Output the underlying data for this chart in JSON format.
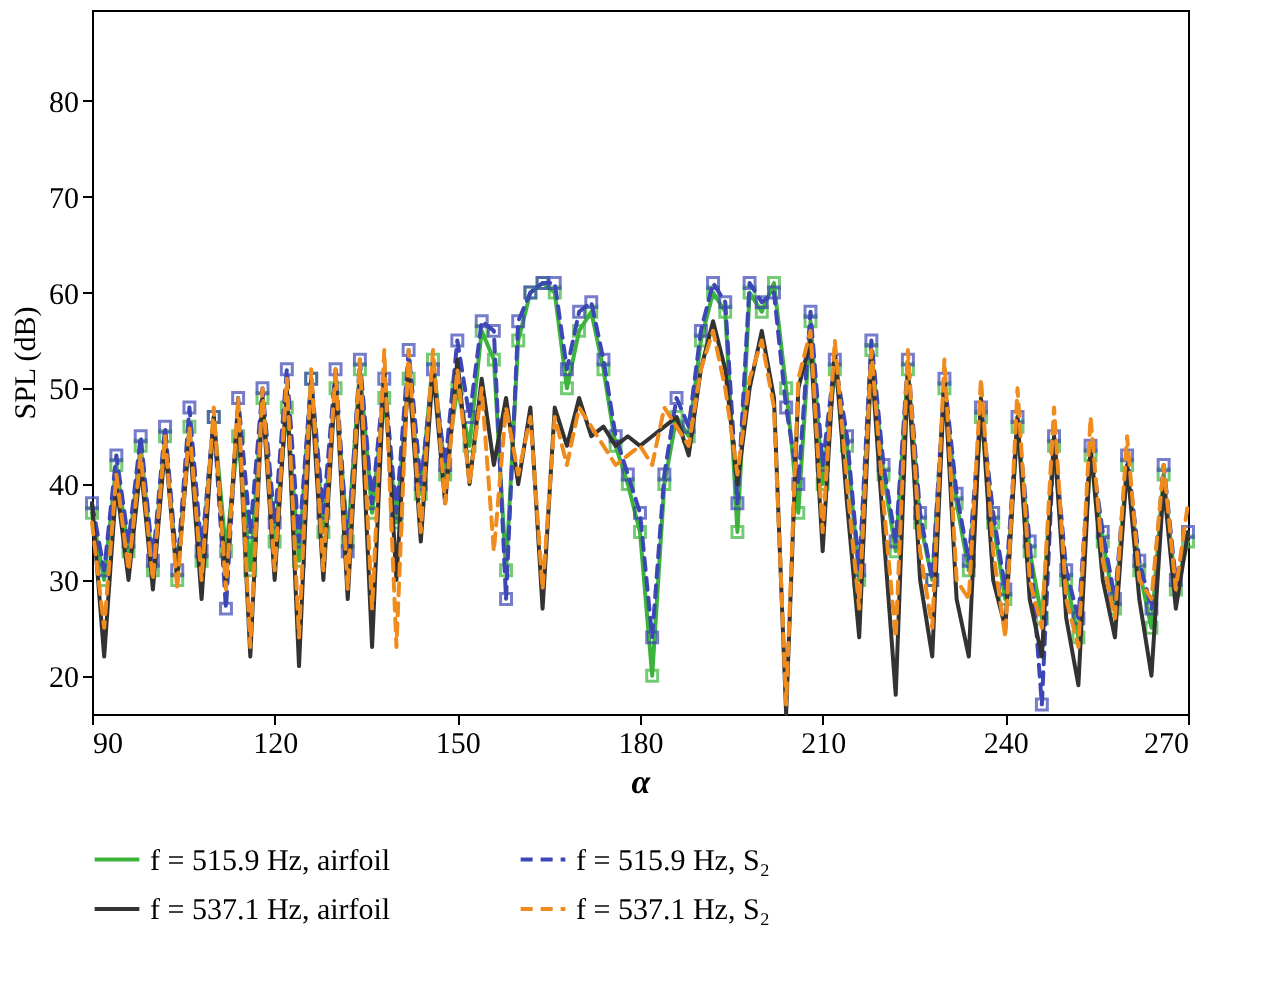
{
  "chart_data": {
    "type": "line",
    "xlabel": "α",
    "ylabel": "SPL (dB)",
    "x": [
      90,
      92,
      94,
      96,
      98,
      100,
      102,
      104,
      106,
      108,
      110,
      112,
      114,
      116,
      118,
      120,
      122,
      124,
      126,
      128,
      130,
      132,
      134,
      136,
      138,
      140,
      142,
      144,
      146,
      148,
      150,
      152,
      154,
      156,
      158,
      160,
      162,
      164,
      166,
      168,
      170,
      172,
      174,
      176,
      178,
      180,
      182,
      184,
      186,
      188,
      190,
      192,
      194,
      196,
      198,
      200,
      202,
      204,
      206,
      208,
      210,
      212,
      214,
      216,
      218,
      220,
      222,
      224,
      226,
      228,
      230,
      232,
      234,
      236,
      238,
      240,
      242,
      244,
      246,
      248,
      250,
      252,
      254,
      256,
      258,
      260,
      262,
      264,
      266,
      268,
      270
    ],
    "series": [
      {
        "name": "f = 515.9 Hz, airfoil",
        "color": "#3cb43c",
        "line_style": "solid",
        "marker": "square",
        "values": [
          37,
          30,
          42,
          33,
          44,
          31,
          45,
          30,
          46,
          32,
          47,
          33,
          45,
          31,
          49,
          34,
          48,
          32,
          51,
          35,
          50,
          34,
          52,
          37,
          49,
          36,
          51,
          39,
          53,
          41,
          50,
          44,
          56,
          53,
          31,
          55,
          60,
          61,
          60,
          50,
          56,
          58,
          52,
          44,
          40,
          35,
          20,
          40,
          47,
          45,
          55,
          60,
          58,
          35,
          60,
          58,
          61,
          50,
          37,
          57,
          40,
          52,
          44,
          30,
          54,
          41,
          33,
          52,
          36,
          30,
          50,
          38,
          31,
          47,
          36,
          28,
          46,
          33,
          26,
          44,
          30,
          24,
          43,
          34,
          27,
          42,
          31,
          25,
          41,
          29,
          34
        ]
      },
      {
        "name": "f = 515.9 Hz, S₂",
        "color": "#3c46b4",
        "line_style": "dashed",
        "marker": "square",
        "values": [
          38,
          31,
          43,
          34,
          45,
          32,
          46,
          31,
          48,
          33,
          47,
          27,
          49,
          35,
          50,
          36,
          52,
          34,
          51,
          37,
          52,
          33,
          53,
          38,
          51,
          37,
          54,
          40,
          52,
          42,
          55,
          47,
          57,
          56,
          28,
          57,
          60,
          61,
          61,
          52,
          58,
          59,
          53,
          45,
          41,
          37,
          24,
          41,
          49,
          46,
          56,
          61,
          59,
          38,
          61,
          59,
          60,
          48,
          40,
          58,
          42,
          53,
          45,
          31,
          55,
          42,
          34,
          53,
          37,
          30,
          51,
          39,
          32,
          48,
          37,
          29,
          47,
          34,
          17,
          45,
          31,
          26,
          44,
          35,
          28,
          43,
          32,
          27,
          42,
          30,
          35
        ]
      },
      {
        "name": "f = 537.1 Hz, airfoil",
        "color": "#333333",
        "line_style": "solid",
        "marker": "none",
        "values": [
          38,
          22,
          40,
          30,
          42,
          29,
          44,
          30,
          45,
          28,
          47,
          30,
          48,
          22,
          49,
          30,
          50,
          21,
          50,
          30,
          51,
          28,
          51,
          23,
          52,
          30,
          52,
          34,
          52,
          38,
          53,
          40,
          51,
          42,
          49,
          40,
          48,
          27,
          48,
          44,
          49,
          45,
          46,
          44,
          45,
          44,
          45,
          46,
          47,
          43,
          52,
          57,
          52,
          40,
          50,
          56,
          49,
          16,
          50,
          55,
          33,
          54,
          38,
          24,
          53,
          35,
          18,
          52,
          30,
          22,
          51,
          28,
          22,
          49,
          30,
          25,
          47,
          28,
          22,
          45,
          26,
          19,
          44,
          30,
          24,
          42,
          28,
          20,
          40,
          27,
          35
        ]
      },
      {
        "name": "f = 537.1 Hz, S₂",
        "color": "#f08c1e",
        "line_style": "dashed",
        "marker": "none",
        "values": [
          36,
          25,
          41,
          31,
          43,
          30,
          45,
          29,
          46,
          30,
          48,
          29,
          49,
          23,
          50,
          31,
          51,
          24,
          52,
          31,
          52,
          29,
          53,
          27,
          54,
          23,
          54,
          35,
          54,
          38,
          52,
          40,
          50,
          33,
          48,
          41,
          47,
          29,
          47,
          42,
          48,
          46,
          44,
          42,
          43,
          44,
          42,
          48,
          46,
          44,
          52,
          56,
          50,
          41,
          51,
          55,
          48,
          17,
          51,
          56,
          35,
          55,
          40,
          27,
          54,
          38,
          24,
          54,
          33,
          25,
          53,
          30,
          28,
          51,
          33,
          24,
          50,
          30,
          25,
          48,
          28,
          23,
          47,
          32,
          26,
          45,
          30,
          28,
          42,
          29,
          38
        ]
      }
    ],
    "xlim": [
      90,
      270
    ],
    "xticks": [
      90,
      120,
      150,
      180,
      210,
      240,
      270
    ],
    "ylim": [
      16,
      89.5
    ],
    "yticks": [
      20,
      30,
      40,
      50,
      60,
      70,
      80
    ],
    "grid": false,
    "legend": "bottom"
  }
}
